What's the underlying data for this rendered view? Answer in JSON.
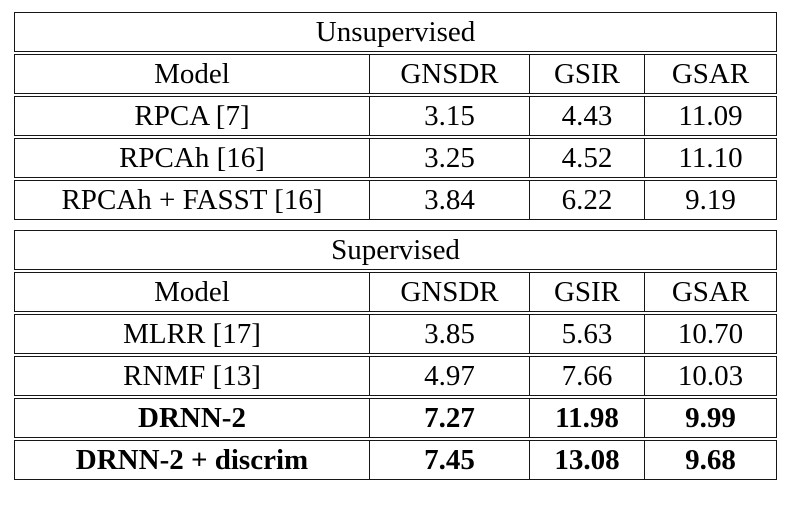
{
  "colors": {
    "background": "#ffffff",
    "border": "#161616",
    "text": "#000000"
  },
  "tables": [
    {
      "section_title": "Unsupervised",
      "columns": [
        "Model",
        "GNSDR",
        "GSIR",
        "GSAR"
      ],
      "rows": [
        {
          "model": "RPCA [7]",
          "values": [
            "3.15",
            "4.43",
            "11.09"
          ],
          "bold": false
        },
        {
          "model": "RPCAh [16]",
          "values": [
            "3.25",
            "4.52",
            "11.10"
          ],
          "bold": false
        },
        {
          "model": "RPCAh + FASST [16]",
          "values": [
            "3.84",
            "6.22",
            "9.19"
          ],
          "bold": false
        }
      ]
    },
    {
      "section_title": "Supervised",
      "columns": [
        "Model",
        "GNSDR",
        "GSIR",
        "GSAR"
      ],
      "rows": [
        {
          "model": "MLRR [17]",
          "values": [
            "3.85",
            "5.63",
            "10.70"
          ],
          "bold": false
        },
        {
          "model": "RNMF [13]",
          "values": [
            "4.97",
            "7.66",
            "10.03"
          ],
          "bold": false
        },
        {
          "model": "DRNN-2",
          "values": [
            "7.27",
            "11.98",
            "9.99"
          ],
          "bold": true
        },
        {
          "model": "DRNN-2 + discrim",
          "values": [
            "7.45",
            "13.08",
            "9.68"
          ],
          "bold": true
        }
      ]
    }
  ]
}
